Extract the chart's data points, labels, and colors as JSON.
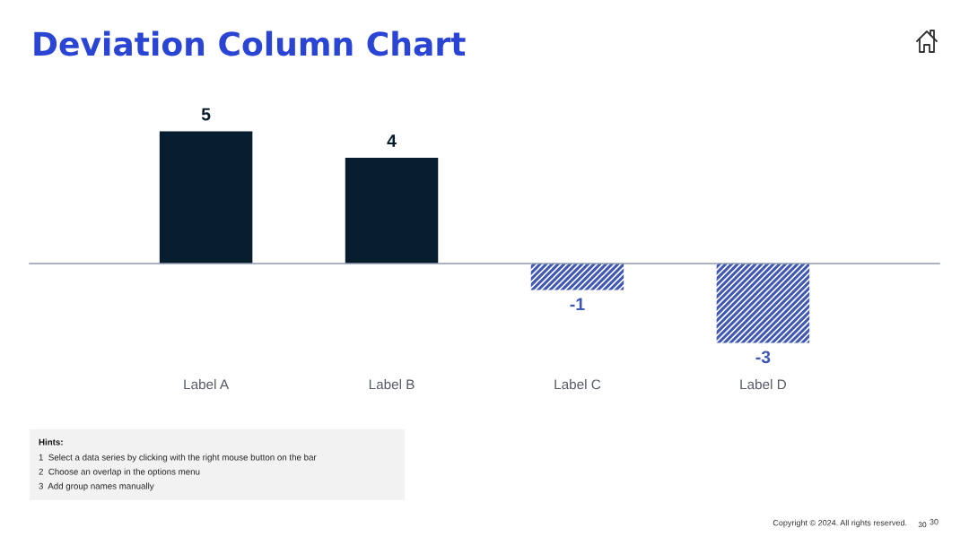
{
  "chart_data": {
    "type": "bar",
    "title": "Deviation Column Chart",
    "categories": [
      "Label A",
      "Label B",
      "Label C",
      "Label D"
    ],
    "values": [
      5,
      4,
      -1,
      -3
    ],
    "colors": [
      "#071c2c",
      "#071c2c",
      "#3f58b3",
      "#3f58b3"
    ],
    "data_labels": true,
    "tick_labels": "x",
    "annotations": [
      "Hints:",
      "1  Select a data series by clicking with the right mouse button on the bar",
      "2  Choose an overlap in the options menu",
      "3  Add group names manually",
      "Copyright © 2024. All rights reserved.",
      "30",
      "30"
    ]
  }
}
